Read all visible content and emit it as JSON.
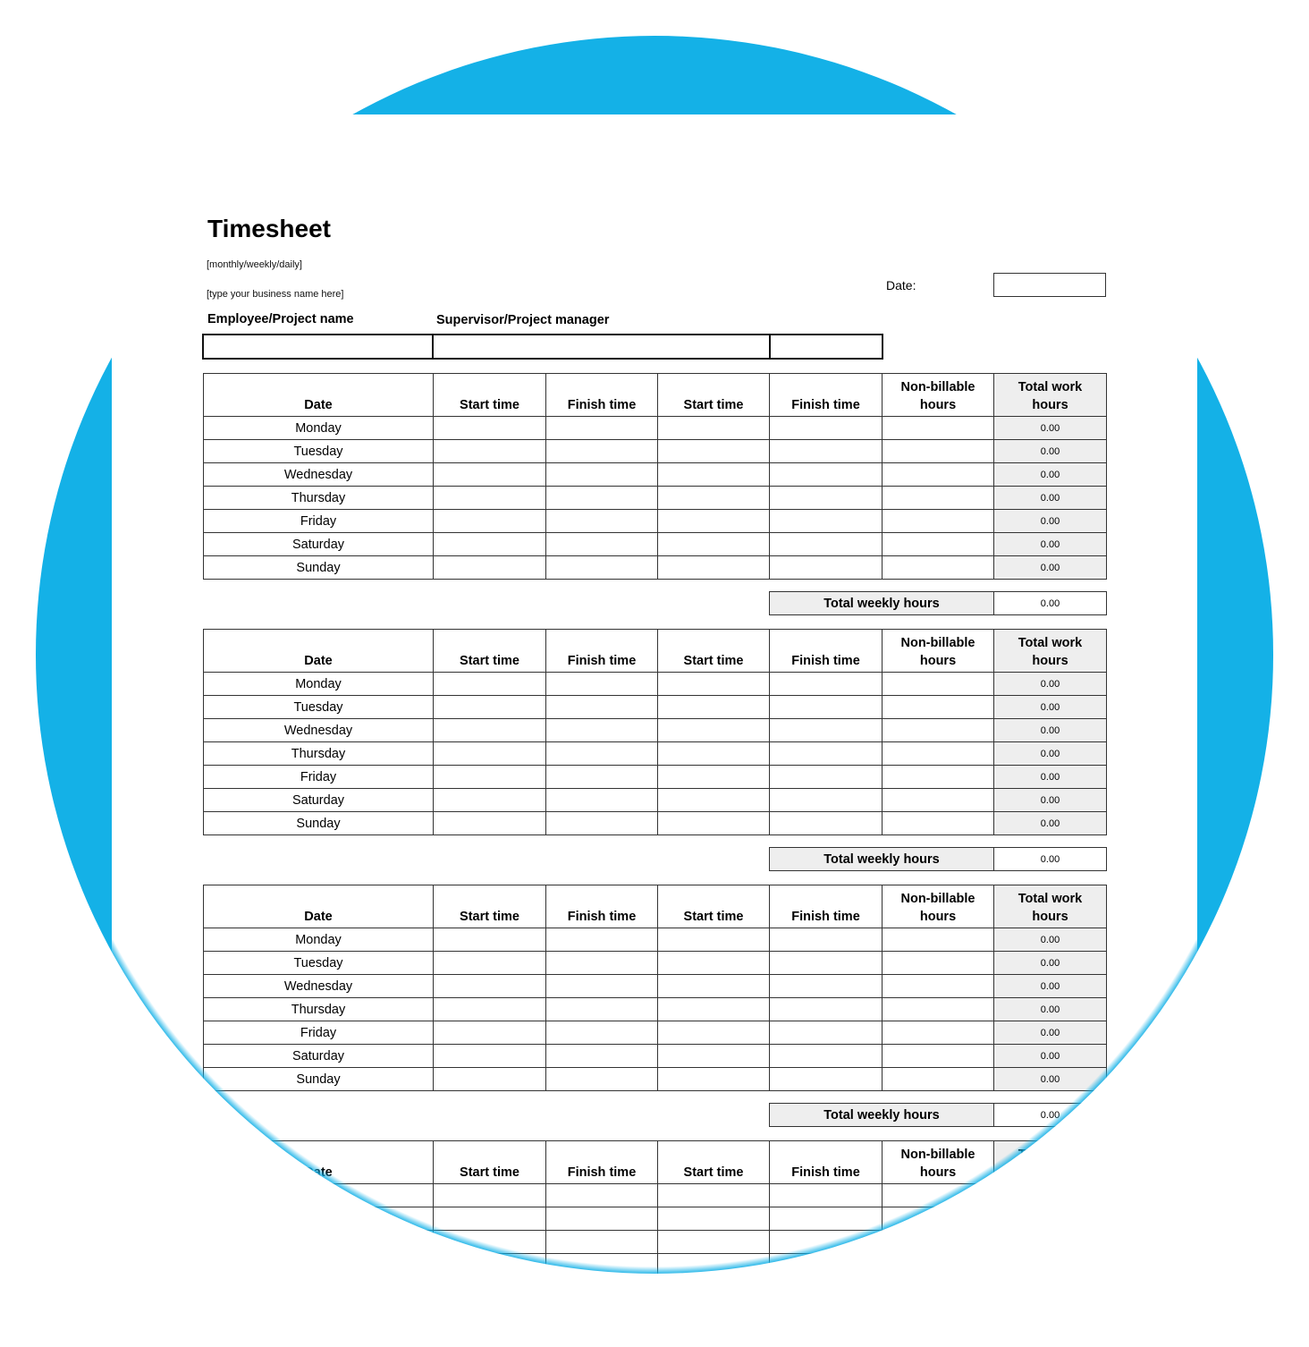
{
  "document": {
    "title": "Timesheet",
    "period_placeholder": "[monthly/weekly/daily]",
    "business_placeholder": "[type your business name here]",
    "date_label": "Date:",
    "employee_label": "Employee/Project name",
    "supervisor_label": "Supervisor/Project manager"
  },
  "table": {
    "headers": [
      "Date",
      "Start time",
      "Finish time",
      "Start time",
      "Finish time",
      "Non-billable hours",
      "Total work hours"
    ],
    "days": [
      "Monday",
      "Tuesday",
      "Wednesday",
      "Thursday",
      "Friday",
      "Saturday",
      "Sunday"
    ],
    "total_label": "Total weekly hours"
  },
  "weeks": [
    {
      "daily_totals": [
        "0.00",
        "0.00",
        "0.00",
        "0.00",
        "0.00",
        "0.00",
        "0.00"
      ],
      "weekly_total": "0.00"
    },
    {
      "daily_totals": [
        "0.00",
        "0.00",
        "0.00",
        "0.00",
        "0.00",
        "0.00",
        "0.00"
      ],
      "weekly_total": "0.00"
    },
    {
      "daily_totals": [
        "0.00",
        "0.00",
        "0.00",
        "0.00",
        "0.00",
        "0.00",
        "0.00"
      ],
      "weekly_total": "0.00"
    },
    {
      "daily_totals": [],
      "weekly_total": ""
    }
  ],
  "colors": {
    "background_circle": "#14b1e7",
    "total_cell": "#eeeeee"
  }
}
